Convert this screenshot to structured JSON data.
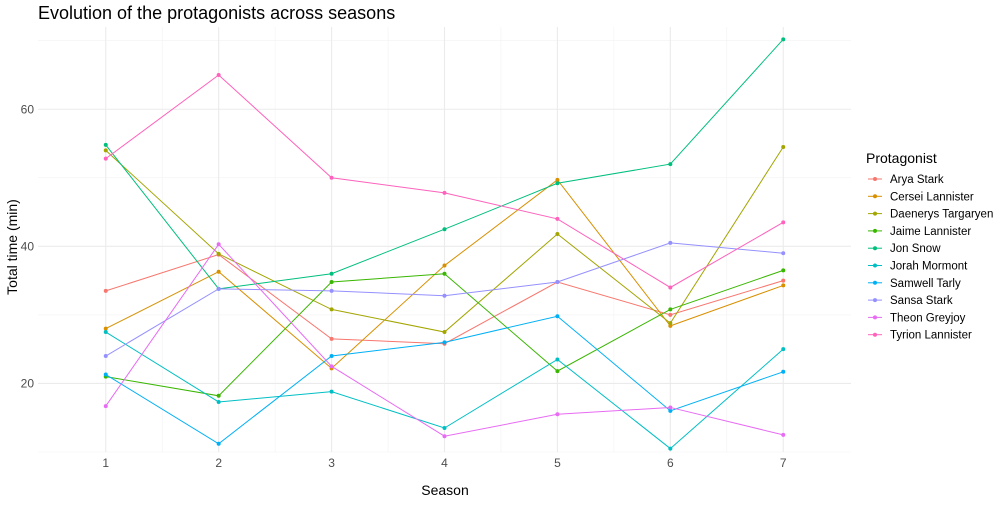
{
  "chart_data": {
    "type": "line",
    "title": "Evolution of the protagonists across seasons",
    "xlabel": "Season",
    "ylabel": "Total time (min)",
    "x": [
      1,
      2,
      3,
      4,
      5,
      6,
      7
    ],
    "xlim": [
      0.4,
      7.6
    ],
    "ylim": [
      10,
      72
    ],
    "yticks": [
      20,
      40,
      60
    ],
    "grid": true,
    "legend": {
      "title": "Protagonist",
      "position": "right"
    },
    "series": [
      {
        "name": "Arya Stark",
        "color": "#F8766D",
        "values": [
          33.5,
          38.8,
          26.5,
          25.8,
          34.8,
          30.0,
          35.0
        ]
      },
      {
        "name": "Cersei Lannister",
        "color": "#D89000",
        "values": [
          28.0,
          36.3,
          22.2,
          37.2,
          49.7,
          28.4,
          34.3
        ]
      },
      {
        "name": "Daenerys Targaryen",
        "color": "#A3A500",
        "values": [
          54.0,
          38.9,
          30.8,
          27.5,
          41.8,
          28.8,
          54.5
        ]
      },
      {
        "name": "Jaime Lannister",
        "color": "#39B600",
        "values": [
          21.0,
          18.2,
          34.8,
          36.0,
          21.8,
          30.8,
          36.5
        ]
      },
      {
        "name": "Jon Snow",
        "color": "#00BF7D",
        "values": [
          54.8,
          33.8,
          36.0,
          42.5,
          49.2,
          52.0,
          70.2
        ]
      },
      {
        "name": "Jorah Mormont",
        "color": "#00BFC4",
        "values": [
          27.5,
          17.3,
          18.8,
          13.5,
          23.5,
          10.5,
          25.0
        ]
      },
      {
        "name": "Samwell Tarly",
        "color": "#00B0F6",
        "values": [
          21.3,
          11.2,
          24.0,
          26.0,
          29.8,
          16.0,
          21.7
        ]
      },
      {
        "name": "Sansa Stark",
        "color": "#9590FF",
        "values": [
          24.0,
          33.8,
          33.5,
          32.8,
          34.8,
          40.5,
          39.0
        ]
      },
      {
        "name": "Theon Greyjoy",
        "color": "#E76BF3",
        "values": [
          16.7,
          40.3,
          22.5,
          12.3,
          15.5,
          16.5,
          12.5
        ]
      },
      {
        "name": "Tyrion Lannister",
        "color": "#FF62BC",
        "values": [
          52.8,
          65.0,
          50.0,
          47.8,
          44.0,
          34.0,
          43.5
        ]
      }
    ]
  }
}
